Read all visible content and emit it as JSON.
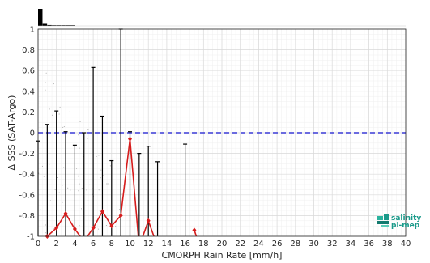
{
  "chart_data": {
    "type": "line",
    "xlabel": "CMORPH Rain Rate [mm/h]",
    "ylabel": "Δ SSS (SAT-Argo)",
    "xlim": [
      0,
      40
    ],
    "ylim": [
      -1,
      1
    ],
    "x_ticks": [
      "0",
      "2",
      "4",
      "6",
      "8",
      "10",
      "12",
      "14",
      "16",
      "18",
      "20",
      "22",
      "24",
      "26",
      "28",
      "30",
      "32",
      "34",
      "36",
      "38",
      "40"
    ],
    "y_ticks": [
      "-1",
      "-0.8",
      "-0.6",
      "-0.4",
      "-0.2",
      "0",
      "0.2",
      "0.4",
      "0.6",
      "0.8",
      "1"
    ],
    "grid": true,
    "reference_line": {
      "y": 0,
      "color": "#3a3ad6",
      "style": "dashed"
    },
    "error_bars": {
      "color": "#000000",
      "points": [
        {
          "x": 0,
          "low": -1,
          "high": -0.08
        },
        {
          "x": 1,
          "low": -1,
          "high": 0.08
        },
        {
          "x": 2,
          "low": -1,
          "high": 0.21
        },
        {
          "x": 3,
          "low": -1,
          "high": 0.01
        },
        {
          "x": 4,
          "low": -1,
          "high": -0.12
        },
        {
          "x": 5,
          "low": -1,
          "high": 0.0
        },
        {
          "x": 6,
          "low": -1,
          "high": 0.63
        },
        {
          "x": 7,
          "low": -1,
          "high": 0.16
        },
        {
          "x": 8,
          "low": -1,
          "high": -0.27
        },
        {
          "x": 9,
          "low": -1,
          "high": 1.0
        },
        {
          "x": 10,
          "low": -1,
          "high": 0.01
        },
        {
          "x": 11,
          "low": -1,
          "high": -0.2
        },
        {
          "x": 12,
          "low": -1,
          "high": -0.13
        },
        {
          "x": 13,
          "low": -1,
          "high": -0.28
        },
        {
          "x": 16,
          "low": -1,
          "high": -0.11
        }
      ]
    },
    "series": [
      {
        "color": "#d61c1c",
        "marker": "diamond",
        "points": [
          {
            "x": 1,
            "y": -1.0
          },
          {
            "x": 2,
            "y": -0.92
          },
          {
            "x": 3,
            "y": -0.78
          },
          {
            "x": 4,
            "y": -0.93
          },
          {
            "x": 5,
            "y": -1.05
          },
          {
            "x": 6,
            "y": -0.92
          },
          {
            "x": 7,
            "y": -0.76
          },
          {
            "x": 8,
            "y": -0.9
          },
          {
            "x": 9,
            "y": -0.8
          },
          {
            "x": 10,
            "y": -0.06
          },
          {
            "x": 11,
            "y": -1.1
          },
          {
            "x": 12,
            "y": -0.85
          },
          {
            "x": 13,
            "y": -1.1
          }
        ]
      },
      {
        "color": "#d61c1c",
        "marker": "diamond",
        "points": [
          {
            "x": 17,
            "y": -0.94
          },
          {
            "x": 17.4,
            "y": -1.05
          }
        ]
      }
    ],
    "histogram_strip": {
      "color": "#000000",
      "values": [
        1.0,
        0.12,
        0.05,
        0.03,
        0.02,
        0.01,
        0.01,
        0.005
      ]
    }
  },
  "logo": {
    "line1": "salinity",
    "line2": "pi-mep",
    "color": "#1a9a8a"
  }
}
